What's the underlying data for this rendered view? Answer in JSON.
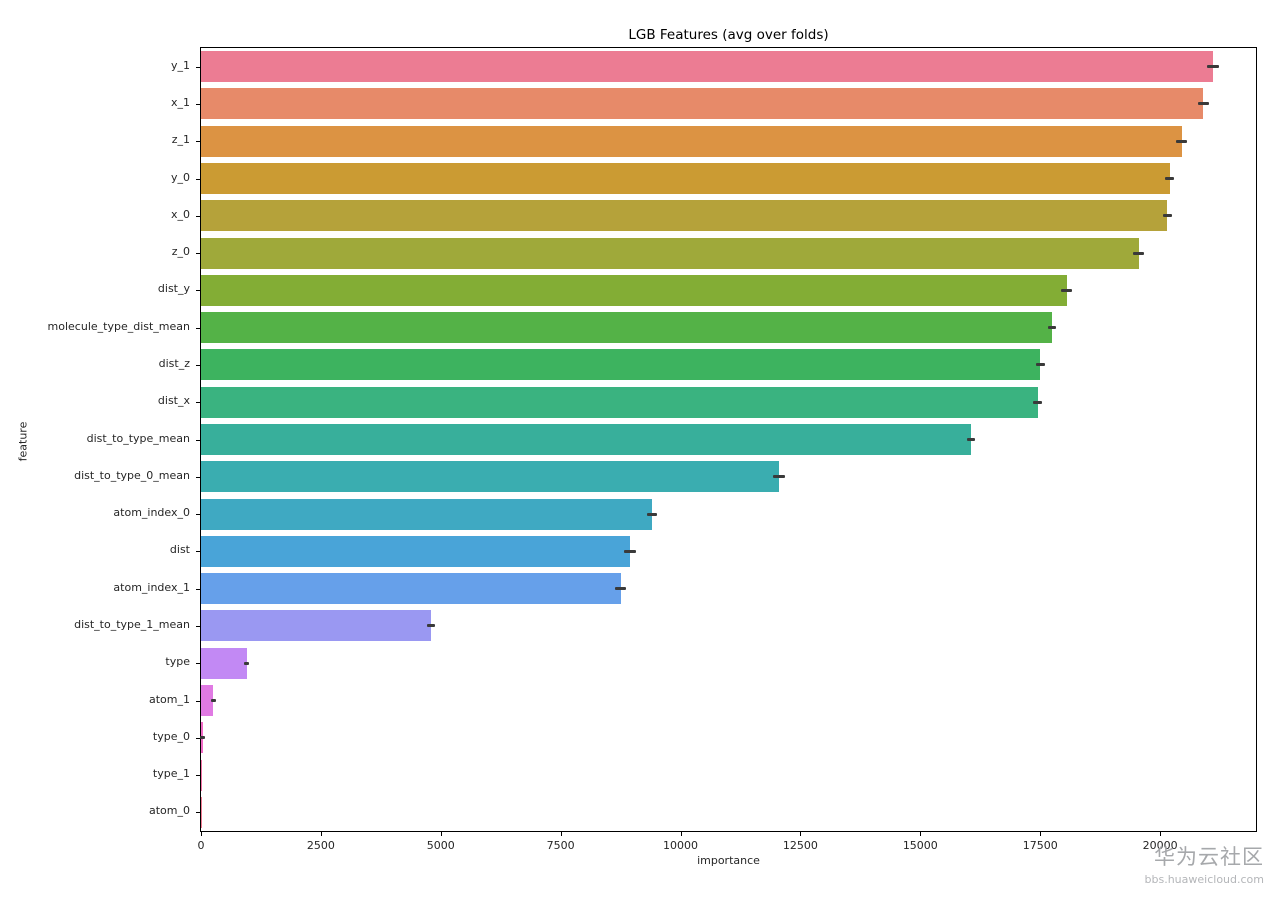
{
  "title": "LGB Features (avg over folds)",
  "watermark": {
    "line1": "华为云社区",
    "line2": "bbs.huaweicloud.com"
  },
  "chart_data": {
    "type": "bar",
    "orientation": "horizontal",
    "title": "LGB Features (avg over folds)",
    "xlabel": "importance",
    "ylabel": "feature",
    "xlim": [
      0,
      22000
    ],
    "xticks": [
      0,
      2500,
      5000,
      7500,
      10000,
      12500,
      15000,
      17500,
      20000
    ],
    "grid": false,
    "legend": "none",
    "categories": [
      "y_1",
      "x_1",
      "z_1",
      "y_0",
      "x_0",
      "z_0",
      "dist_y",
      "molecule_type_dist_mean",
      "dist_z",
      "dist_x",
      "dist_to_type_mean",
      "dist_to_type_0_mean",
      "atom_index_0",
      "dist",
      "atom_index_1",
      "dist_to_type_1_mean",
      "type",
      "atom_1",
      "type_0",
      "type_1",
      "atom_0"
    ],
    "values": [
      21100,
      20900,
      20450,
      20200,
      20150,
      19550,
      18050,
      17750,
      17500,
      17450,
      16050,
      12050,
      9400,
      8950,
      8750,
      4800,
      950,
      260,
      40,
      20,
      10
    ],
    "errors": [
      130,
      110,
      120,
      100,
      90,
      120,
      110,
      80,
      90,
      90,
      80,
      120,
      100,
      130,
      110,
      80,
      60,
      35,
      15,
      0,
      0
    ],
    "colors": [
      "#ec7c93",
      "#e78a69",
      "#dc9343",
      "#cb9b33",
      "#b5a23a",
      "#9fa93a",
      "#83ad35",
      "#54b247",
      "#3db35f",
      "#3ab380",
      "#38af9b",
      "#3aadb0",
      "#3fa9c2",
      "#49a4d8",
      "#66a0ea",
      "#9a98f2",
      "#c289f4",
      "#e07ae3",
      "#f06bc6",
      "#f473a6",
      "#f27a92"
    ]
  }
}
